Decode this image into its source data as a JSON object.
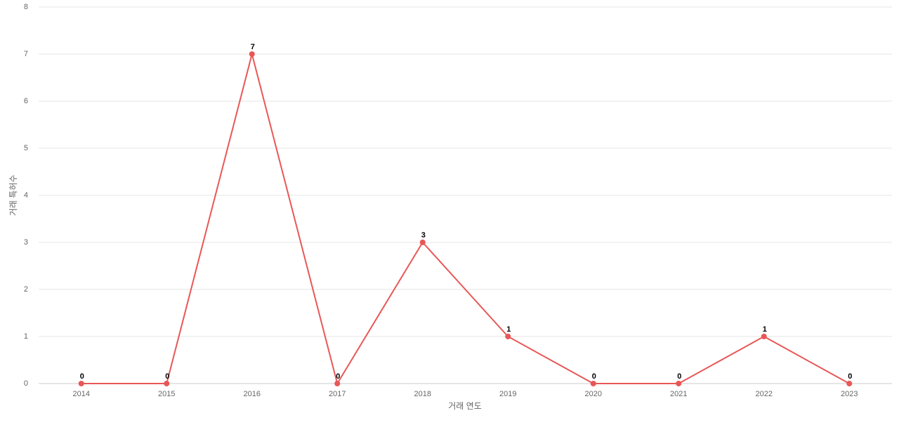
{
  "chart_data": {
    "type": "line",
    "x_label": "거래 연도",
    "y_label": "거래 특허수",
    "categories": [
      "2014",
      "2015",
      "2016",
      "2017",
      "2018",
      "2019",
      "2020",
      "2021",
      "2022",
      "2023"
    ],
    "values": [
      0,
      0,
      7,
      0,
      3,
      1,
      0,
      0,
      1,
      0
    ],
    "color": "#e85757",
    "ylim": [
      0,
      8
    ],
    "yticks": [
      0,
      1,
      2,
      3,
      4,
      5,
      6,
      7,
      8
    ],
    "grid": true
  }
}
